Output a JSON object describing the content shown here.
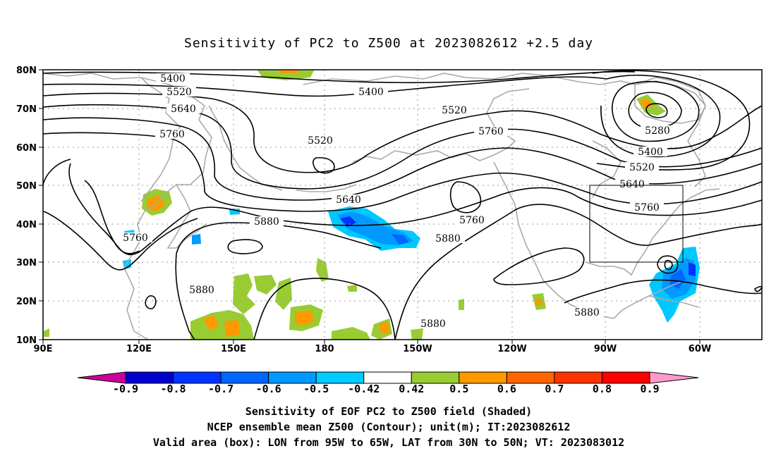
{
  "title": "Sensitivity of PC2 to Z500 at 2023082612 +2.5 day",
  "map": {
    "lat_ticks": [
      "80N",
      "70N",
      "60N",
      "50N",
      "40N",
      "30N",
      "20N",
      "10N"
    ],
    "lon_ticks": [
      "90E",
      "120E",
      "150E",
      "180",
      "150W",
      "120W",
      "90W",
      "60W"
    ],
    "contour_labels": [
      "5400",
      "5520",
      "5640",
      "5760",
      "5880",
      "5280"
    ],
    "colors": {
      "contour": "#000000",
      "coast": "#aaaaaa",
      "grid": "#999999",
      "pos_050": "#99cc33",
      "pos_060": "#ff9900",
      "pos_070": "#ff6600",
      "neg_042": "#00c8ff",
      "neg_050": "#0099ff",
      "neg_060": "#0066ff",
      "neg_070": "#0033ff"
    }
  },
  "colorbar": {
    "labels": [
      "-0.9",
      "-0.8",
      "-0.7",
      "-0.6",
      "-0.5",
      "-0.42",
      "0.42",
      "0.5",
      "0.6",
      "0.7",
      "0.8",
      "0.9"
    ],
    "colors": [
      "#0000cc",
      "#0033ff",
      "#0066ff",
      "#0099ff",
      "#00ccff",
      "#ffffff",
      "#99cc33",
      "#ff9900",
      "#ff6600",
      "#ff3300",
      "#ff0000"
    ],
    "low_end": "#cc0099",
    "high_end": "#ff99cc"
  },
  "footer": {
    "line1": "Sensitivity of EOF PC2 to Z500 field (Shaded)",
    "line2": "NCEP ensemble mean Z500 (Contour); unit(m); IT:2023082612",
    "line3": "Valid area (box): LON from 95W to 65W, LAT from 30N to 50N; VT: 2023083012"
  }
}
